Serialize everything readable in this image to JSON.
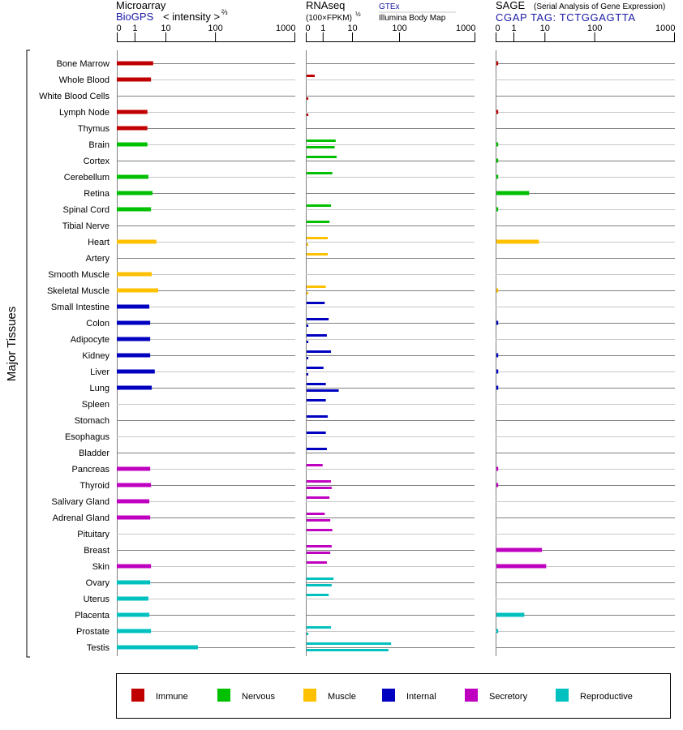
{
  "chart_data": {
    "type": "bar",
    "orientation": "horizontal",
    "ylabel": "Major Tissues",
    "panels": {
      "microarray": {
        "title": "Microarray",
        "source": "BioGPS",
        "unit": "< intensity >",
        "unit_sup": "⅔",
        "ticks": [
          "0",
          "1",
          "10",
          "100",
          "1000"
        ]
      },
      "rnaseq": {
        "title": "RNAseq",
        "unit": "(100×FPKM)",
        "unit_sup": "½",
        "source_top": "GTEx",
        "source_bottom": "Illumina Body Map",
        "ticks": [
          "0",
          "1",
          "10",
          "100",
          "1000"
        ]
      },
      "sage": {
        "title": "SAGE",
        "subtitle": "(Serial Analysis of Gene Expression)",
        "tag": "CGAP TAG: TCTGGAGTTA",
        "ticks": [
          "0",
          "1",
          "10",
          "100",
          "1000"
        ]
      }
    },
    "tick_values": [
      0,
      1,
      10,
      100,
      1000
    ],
    "groups": {
      "immune": {
        "label": "Immune",
        "color": "#c00000"
      },
      "nervous": {
        "label": "Nervous",
        "color": "#00c000"
      },
      "muscle": {
        "label": "Muscle",
        "color": "#ffc000"
      },
      "internal": {
        "label": "Internal",
        "color": "#0000c0"
      },
      "secretory": {
        "label": "Secretory",
        "color": "#c000c0"
      },
      "reproductive": {
        "label": "Reproductive",
        "color": "#00c0c0"
      }
    },
    "legend_order": [
      "immune",
      "nervous",
      "muscle",
      "internal",
      "secretory",
      "reproductive"
    ],
    "legend_position": "bottom",
    "tissues": [
      {
        "name": "Bone Marrow",
        "group": "immune",
        "microarray": 4.0,
        "gtex": null,
        "bodymap": null,
        "sage": 0.1
      },
      {
        "name": "Whole Blood",
        "group": "immune",
        "microarray": 3.4,
        "gtex": 0.48,
        "bodymap": null,
        "sage": null
      },
      {
        "name": "White Blood Cells",
        "group": "immune",
        "microarray": null,
        "gtex": null,
        "bodymap": 0.1,
        "sage": null
      },
      {
        "name": "Lymph Node",
        "group": "immune",
        "microarray": 2.6,
        "gtex": null,
        "bodymap": 0.1,
        "sage": 0.1
      },
      {
        "name": "Thymus",
        "group": "immune",
        "microarray": 2.6,
        "gtex": null,
        "bodymap": null,
        "sage": null
      },
      {
        "name": "Brain",
        "group": "nervous",
        "microarray": 2.6,
        "gtex": 2.6,
        "bodymap": 2.4,
        "sage": 0.1
      },
      {
        "name": "Cortex",
        "group": "nervous",
        "microarray": null,
        "gtex": 2.8,
        "bodymap": null,
        "sage": 0.1
      },
      {
        "name": "Cerebellum",
        "group": "nervous",
        "microarray": 2.8,
        "gtex": 2.0,
        "bodymap": null,
        "sage": 0.1
      },
      {
        "name": "Retina",
        "group": "nervous",
        "microarray": 3.8,
        "gtex": null,
        "bodymap": null,
        "sage": 3.0
      },
      {
        "name": "Spinal Cord",
        "group": "nervous",
        "microarray": 3.4,
        "gtex": 1.8,
        "bodymap": null,
        "sage": 0.1
      },
      {
        "name": "Tibial Nerve",
        "group": "nervous",
        "microarray": null,
        "gtex": 1.6,
        "bodymap": null,
        "sage": null
      },
      {
        "name": "Heart",
        "group": "muscle",
        "microarray": 5.1,
        "gtex": 1.4,
        "bodymap": 0.1,
        "sage": 6.2
      },
      {
        "name": "Artery",
        "group": "muscle",
        "microarray": null,
        "gtex": 1.4,
        "bodymap": null,
        "sage": null
      },
      {
        "name": "Smooth Muscle",
        "group": "muscle",
        "microarray": 3.6,
        "gtex": null,
        "bodymap": null,
        "sage": null
      },
      {
        "name": "Skeletal Muscle",
        "group": "muscle",
        "microarray": 5.8,
        "gtex": 1.2,
        "bodymap": 0.1,
        "sage": 0.1
      },
      {
        "name": "Small Intestine",
        "group": "internal",
        "microarray": 3.0,
        "gtex": 1.1,
        "bodymap": null,
        "sage": null
      },
      {
        "name": "Colon",
        "group": "internal",
        "microarray": 3.2,
        "gtex": 1.5,
        "bodymap": 0.1,
        "sage": 0.1
      },
      {
        "name": "Adipocyte",
        "group": "internal",
        "microarray": 3.2,
        "gtex": 1.3,
        "bodymap": 0.1,
        "sage": null
      },
      {
        "name": "Kidney",
        "group": "internal",
        "microarray": 3.2,
        "gtex": 1.8,
        "bodymap": 0.1,
        "sage": 0.1
      },
      {
        "name": "Liver",
        "group": "internal",
        "microarray": 4.5,
        "gtex": 1.0,
        "bodymap": 0.1,
        "sage": 0.1
      },
      {
        "name": "Lung",
        "group": "internal",
        "microarray": 3.6,
        "gtex": 1.2,
        "bodymap": 3.3,
        "sage": 0.1
      },
      {
        "name": "Spleen",
        "group": "internal",
        "microarray": null,
        "gtex": 1.2,
        "bodymap": null,
        "sage": null
      },
      {
        "name": "Stomach",
        "group": "internal",
        "microarray": null,
        "gtex": 1.4,
        "bodymap": null,
        "sage": null
      },
      {
        "name": "Esophagus",
        "group": "internal",
        "microarray": null,
        "gtex": 1.2,
        "bodymap": null,
        "sage": null
      },
      {
        "name": "Bladder",
        "group": "internal",
        "microarray": null,
        "gtex": 1.3,
        "bodymap": null,
        "sage": null
      },
      {
        "name": "Pancreas",
        "group": "secretory",
        "microarray": 3.2,
        "gtex": 0.95,
        "bodymap": null,
        "sage": 0.1
      },
      {
        "name": "Thyroid",
        "group": "secretory",
        "microarray": 3.4,
        "gtex": 1.8,
        "bodymap": 1.9,
        "sage": 0.1
      },
      {
        "name": "Salivary Gland",
        "group": "secretory",
        "microarray": 3.0,
        "gtex": 1.6,
        "bodymap": null,
        "sage": null
      },
      {
        "name": "Adrenal Gland",
        "group": "secretory",
        "microarray": 3.2,
        "gtex": 1.1,
        "bodymap": 1.7,
        "sage": null
      },
      {
        "name": "Pituitary",
        "group": "secretory",
        "microarray": null,
        "gtex": 2.0,
        "bodymap": null,
        "sage": null
      },
      {
        "name": "Breast",
        "group": "secretory",
        "microarray": null,
        "gtex": 1.9,
        "bodymap": 1.7,
        "sage": 7.8
      },
      {
        "name": "Skin",
        "group": "secretory",
        "microarray": 3.4,
        "gtex": 1.3,
        "bodymap": null,
        "sage": 10.4
      },
      {
        "name": "Ovary",
        "group": "reproductive",
        "microarray": 3.2,
        "gtex": 2.2,
        "bodymap": 1.9,
        "sage": null
      },
      {
        "name": "Uterus",
        "group": "reproductive",
        "microarray": 2.8,
        "gtex": 1.5,
        "bodymap": null,
        "sage": null
      },
      {
        "name": "Placenta",
        "group": "reproductive",
        "microarray": 3.0,
        "gtex": null,
        "bodymap": null,
        "sage": 2.1
      },
      {
        "name": "Prostate",
        "group": "reproductive",
        "microarray": 3.4,
        "gtex": 1.8,
        "bodymap": 0.1,
        "sage": 0.1
      },
      {
        "name": "Testis",
        "group": "reproductive",
        "microarray": 45,
        "gtex": 65,
        "bodymap": 57,
        "sage": null
      }
    ]
  }
}
